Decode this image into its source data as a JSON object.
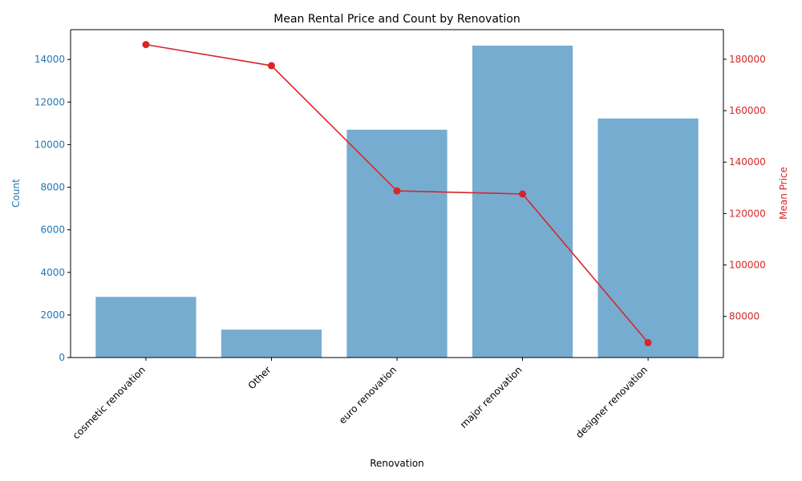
{
  "chart_data": {
    "type": "bar",
    "title": "Mean Rental Price and Count by Renovation",
    "xlabel": "Renovation",
    "categories": [
      "cosmetic renovation",
      "Other",
      "euro renovation",
      "major renovation",
      "designer renovation"
    ],
    "series": [
      {
        "type": "bar",
        "axis": "left",
        "color": "#77acd1",
        "values": [
          2850,
          1310,
          10700,
          14650,
          11230
        ]
      },
      {
        "type": "line",
        "axis": "right",
        "color": "#d62728",
        "values": [
          185700,
          177500,
          128800,
          127600,
          69800
        ]
      }
    ],
    "y_left": {
      "label": "Count",
      "color": "#1f77b4",
      "range": [
        0,
        15400
      ],
      "ticks": [
        0,
        2000,
        4000,
        6000,
        8000,
        10000,
        12000,
        14000
      ]
    },
    "y_right": {
      "label": "Mean Price",
      "color": "#d62728",
      "range": [
        64000,
        191500
      ],
      "ticks": [
        80000,
        100000,
        120000,
        140000,
        160000,
        180000
      ]
    },
    "grid": false,
    "legend": "none"
  }
}
